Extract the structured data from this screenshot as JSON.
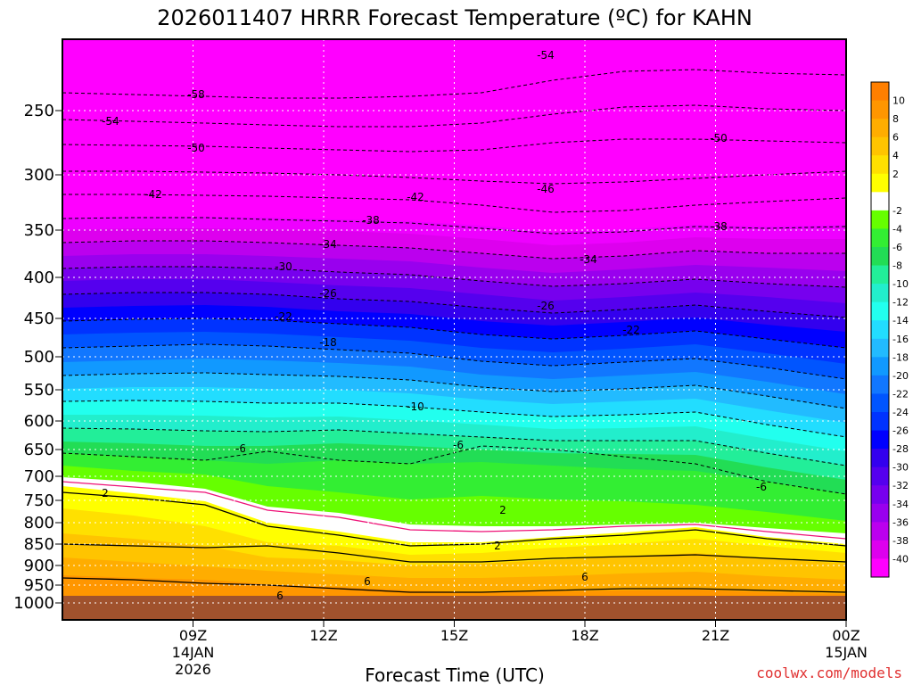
{
  "chart_data": {
    "type": "contour",
    "title": "2026011407 HRRR Forecast Temperature (ºC) for KAHN",
    "xlabel": "Forecast Time (UTC)",
    "ylabel": "",
    "y_scale": "log-pressure (inverted)",
    "ylim_hpa": [
      1025,
      200
    ],
    "y_ticks": [
      "250",
      "300",
      "350",
      "400",
      "450",
      "500",
      "550",
      "600",
      "650",
      "700",
      "750",
      "800",
      "850",
      "900",
      "950",
      "1000"
    ],
    "x_range_hours_utc": [
      6,
      24
    ],
    "x_ticks": [
      {
        "label": "09Z",
        "sub1": "14JAN",
        "sub2": "2026",
        "hour": 9
      },
      {
        "label": "12Z",
        "sub1": "",
        "sub2": "",
        "hour": 12
      },
      {
        "label": "15Z",
        "sub1": "",
        "sub2": "",
        "hour": 15
      },
      {
        "label": "18Z",
        "sub1": "",
        "sub2": "",
        "hour": 18
      },
      {
        "label": "21Z",
        "sub1": "",
        "sub2": "",
        "hour": 21
      },
      {
        "label": "00Z",
        "sub1": "15JAN",
        "sub2": "",
        "hour": 24
      }
    ],
    "colorbar_labels": [
      "10",
      "8",
      "6",
      "4",
      "2",
      "-2",
      "-4",
      "-6",
      "-8",
      "-10",
      "-12",
      "-14",
      "-16",
      "-18",
      "-20",
      "-22",
      "-24",
      "-26",
      "-28",
      "-30",
      "-32",
      "-34",
      "-36",
      "-38",
      "-40"
    ],
    "colorbar_colors": [
      "#ff7f00",
      "#ff9600",
      "#ffad00",
      "#ffc400",
      "#ffe000",
      "#ffff00",
      "#ffffff",
      "#66ff00",
      "#33ee33",
      "#22dd55",
      "#22ee99",
      "#22eecc",
      "#22ffee",
      "#22ddff",
      "#22bbff",
      "#1199ff",
      "#1177ff",
      "#0055ff",
      "#0033ff",
      "#0000ff",
      "#3300ee",
      "#5500ee",
      "#7700ee",
      "#9900ee",
      "#bb00ee",
      "#dd00ee",
      "#ff00ff"
    ],
    "contour_labels": [
      "-54",
      "-58",
      "-54",
      "-50",
      "-50",
      "-42",
      "-42",
      "-46",
      "-38",
      "-38",
      "-34",
      "-34",
      "-30",
      "-26",
      "-26",
      "-22",
      "-22",
      "-18",
      "-10",
      "-6",
      "-6",
      "-6",
      "2",
      "2",
      "2",
      "6",
      "6",
      "6"
    ],
    "surface_fill": "#a0522d",
    "below_zero_fill": "#ff00ff"
  },
  "credit": "coolwx.com/models"
}
